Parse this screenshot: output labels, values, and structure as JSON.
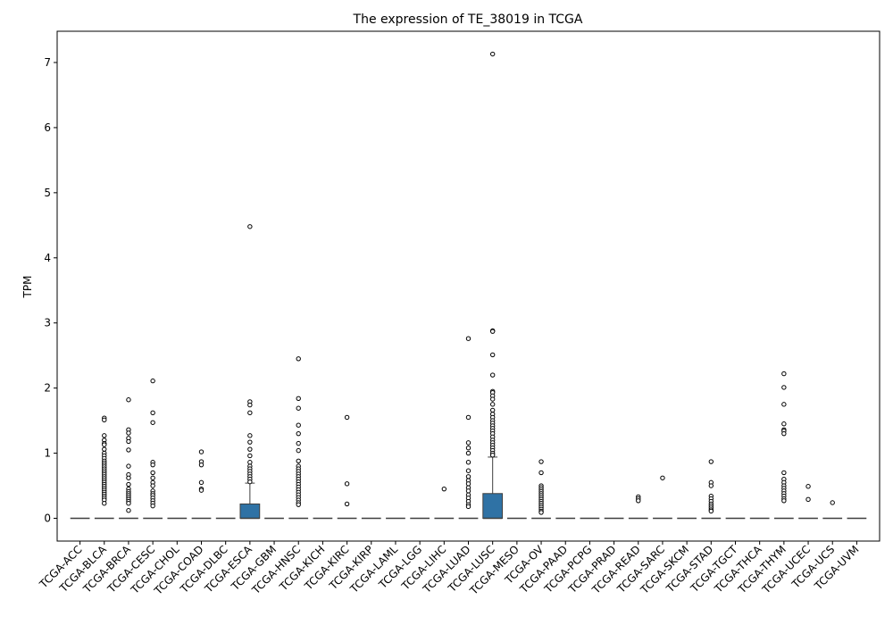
{
  "chart_data": {
    "type": "box",
    "title": "The expression of TE_38019 in TCGA",
    "xlabel": "",
    "ylabel": "TPM",
    "ylim": [
      -0.35,
      7.48
    ],
    "yticks": [
      0,
      1,
      2,
      3,
      4,
      5,
      6,
      7
    ],
    "grid": false,
    "box_color": "#2f72a5",
    "categories": [
      "TCGA-ACC",
      "TCGA-BLCA",
      "TCGA-BRCA",
      "TCGA-CESC",
      "TCGA-CHOL",
      "TCGA-COAD",
      "TCGA-DLBC",
      "TCGA-ESCA",
      "TCGA-GBM",
      "TCGA-HNSC",
      "TCGA-KICH",
      "TCGA-KIRC",
      "TCGA-KIRP",
      "TCGA-LAML",
      "TCGA-LGG",
      "TCGA-LIHC",
      "TCGA-LUAD",
      "TCGA-LUSC",
      "TCGA-MESO",
      "TCGA-OV",
      "TCGA-PAAD",
      "TCGA-PCPG",
      "TCGA-PRAD",
      "TCGA-READ",
      "TCGA-SARC",
      "TCGA-SKCM",
      "TCGA-STAD",
      "TCGA-TGCT",
      "TCGA-THCA",
      "TCGA-THYM",
      "TCGA-UCEC",
      "TCGA-UCS",
      "TCGA-UVM"
    ],
    "boxes": [
      {
        "q1": 0,
        "median": 0,
        "q3": 0,
        "whisker_low": 0,
        "whisker_high": 0,
        "outliers": []
      },
      {
        "q1": 0,
        "median": 0,
        "q3": 0,
        "whisker_low": 0,
        "whisker_high": 0,
        "outliers": [
          1.54,
          1.51,
          1.27,
          1.2,
          1.15,
          1.13,
          1.06,
          1.0,
          0.96,
          0.92,
          0.88,
          0.85,
          0.82,
          0.79,
          0.76,
          0.73,
          0.7,
          0.67,
          0.64,
          0.61,
          0.58,
          0.55,
          0.52,
          0.49,
          0.46,
          0.43,
          0.4,
          0.37,
          0.34,
          0.31,
          0.28,
          0.23
        ]
      },
      {
        "q1": 0,
        "median": 0,
        "q3": 0,
        "whisker_low": 0,
        "whisker_high": 0,
        "outliers": [
          1.82,
          1.36,
          1.31,
          1.23,
          1.18,
          1.05,
          0.8,
          0.67,
          0.62,
          0.52,
          0.45,
          0.41,
          0.38,
          0.35,
          0.32,
          0.29,
          0.26,
          0.23,
          0.12
        ]
      },
      {
        "q1": 0,
        "median": 0,
        "q3": 0,
        "whisker_low": 0,
        "whisker_high": 0,
        "outliers": [
          2.11,
          1.62,
          1.47,
          0.86,
          0.82,
          0.7,
          0.62,
          0.55,
          0.5,
          0.42,
          0.38,
          0.35,
          0.31,
          0.27,
          0.23,
          0.19
        ]
      },
      {
        "q1": 0,
        "median": 0,
        "q3": 0,
        "whisker_low": 0,
        "whisker_high": 0,
        "outliers": []
      },
      {
        "q1": 0,
        "median": 0,
        "q3": 0,
        "whisker_low": 0,
        "whisker_high": 0,
        "outliers": [
          1.02,
          0.87,
          0.82,
          0.55,
          0.45,
          0.43
        ]
      },
      {
        "q1": 0,
        "median": 0,
        "q3": 0,
        "whisker_low": 0,
        "whisker_high": 0,
        "outliers": []
      },
      {
        "q1": 0,
        "median": 0,
        "q3": 0.22,
        "whisker_low": 0,
        "whisker_high": 0.54,
        "outliers": [
          4.48,
          1.79,
          1.74,
          1.62,
          1.27,
          1.17,
          1.06,
          0.96,
          0.86,
          0.8,
          0.76,
          0.72,
          0.68,
          0.64,
          0.6,
          0.56
        ]
      },
      {
        "q1": 0,
        "median": 0,
        "q3": 0,
        "whisker_low": 0,
        "whisker_high": 0,
        "outliers": []
      },
      {
        "q1": 0,
        "median": 0,
        "q3": 0,
        "whisker_low": 0,
        "whisker_high": 0,
        "outliers": [
          2.45,
          1.84,
          1.69,
          1.43,
          1.3,
          1.15,
          1.04,
          0.88,
          0.8,
          0.76,
          0.72,
          0.68,
          0.64,
          0.6,
          0.56,
          0.52,
          0.48,
          0.44,
          0.4,
          0.36,
          0.32,
          0.28,
          0.24,
          0.21
        ]
      },
      {
        "q1": 0,
        "median": 0,
        "q3": 0,
        "whisker_low": 0,
        "whisker_high": 0,
        "outliers": []
      },
      {
        "q1": 0,
        "median": 0,
        "q3": 0,
        "whisker_low": 0,
        "whisker_high": 0,
        "outliers": [
          1.55,
          0.53,
          0.22
        ]
      },
      {
        "q1": 0,
        "median": 0,
        "q3": 0,
        "whisker_low": 0,
        "whisker_high": 0,
        "outliers": []
      },
      {
        "q1": 0,
        "median": 0,
        "q3": 0,
        "whisker_low": 0,
        "whisker_high": 0,
        "outliers": []
      },
      {
        "q1": 0,
        "median": 0,
        "q3": 0,
        "whisker_low": 0,
        "whisker_high": 0,
        "outliers": []
      },
      {
        "q1": 0,
        "median": 0,
        "q3": 0,
        "whisker_low": 0,
        "whisker_high": 0,
        "outliers": [
          0.45
        ]
      },
      {
        "q1": 0,
        "median": 0,
        "q3": 0,
        "whisker_low": 0,
        "whisker_high": 0,
        "outliers": [
          2.76,
          1.55,
          1.16,
          1.08,
          1.0,
          0.86,
          0.73,
          0.64,
          0.58,
          0.53,
          0.47,
          0.42,
          0.36,
          0.31,
          0.26,
          0.21,
          0.18
        ]
      },
      {
        "q1": 0,
        "median": 0,
        "q3": 0.38,
        "whisker_low": 0,
        "whisker_high": 0.94,
        "outliers": [
          7.13,
          2.88,
          2.87,
          2.51,
          2.2,
          1.95,
          1.93,
          1.88,
          1.83,
          1.75,
          1.66,
          1.6,
          1.55,
          1.5,
          1.46,
          1.42,
          1.38,
          1.34,
          1.3,
          1.25,
          1.2,
          1.16,
          1.12,
          1.08,
          1.04,
          1.0,
          0.97
        ]
      },
      {
        "q1": 0,
        "median": 0,
        "q3": 0,
        "whisker_low": 0,
        "whisker_high": 0,
        "outliers": []
      },
      {
        "q1": 0,
        "median": 0,
        "q3": 0,
        "whisker_low": 0,
        "whisker_high": 0,
        "outliers": [
          0.87,
          0.7,
          0.5,
          0.47,
          0.44,
          0.41,
          0.38,
          0.35,
          0.32,
          0.29,
          0.26,
          0.23,
          0.2,
          0.17,
          0.14,
          0.11,
          0.09
        ]
      },
      {
        "q1": 0,
        "median": 0,
        "q3": 0,
        "whisker_low": 0,
        "whisker_high": 0,
        "outliers": []
      },
      {
        "q1": 0,
        "median": 0,
        "q3": 0,
        "whisker_low": 0,
        "whisker_high": 0,
        "outliers": []
      },
      {
        "q1": 0,
        "median": 0,
        "q3": 0,
        "whisker_low": 0,
        "whisker_high": 0,
        "outliers": []
      },
      {
        "q1": 0,
        "median": 0,
        "q3": 0,
        "whisker_low": 0,
        "whisker_high": 0,
        "outliers": [
          0.33,
          0.3,
          0.27
        ]
      },
      {
        "q1": 0,
        "median": 0,
        "q3": 0,
        "whisker_low": 0,
        "whisker_high": 0,
        "outliers": [
          0.62
        ]
      },
      {
        "q1": 0,
        "median": 0,
        "q3": 0,
        "whisker_low": 0,
        "whisker_high": 0,
        "outliers": []
      },
      {
        "q1": 0,
        "median": 0,
        "q3": 0,
        "whisker_low": 0,
        "whisker_high": 0,
        "outliers": [
          0.87,
          0.55,
          0.5,
          0.34,
          0.3,
          0.26,
          0.22,
          0.19,
          0.16,
          0.13,
          0.11
        ]
      },
      {
        "q1": 0,
        "median": 0,
        "q3": 0,
        "whisker_low": 0,
        "whisker_high": 0,
        "outliers": []
      },
      {
        "q1": 0,
        "median": 0,
        "q3": 0,
        "whisker_low": 0,
        "whisker_high": 0,
        "outliers": []
      },
      {
        "q1": 0,
        "median": 0,
        "q3": 0,
        "whisker_low": 0,
        "whisker_high": 0,
        "outliers": [
          2.22,
          2.01,
          1.75,
          1.45,
          1.36,
          1.34,
          1.3,
          0.7,
          0.6,
          0.55,
          0.5,
          0.46,
          0.42,
          0.38,
          0.34,
          0.3,
          0.27
        ]
      },
      {
        "q1": 0,
        "median": 0,
        "q3": 0,
        "whisker_low": 0,
        "whisker_high": 0,
        "outliers": [
          0.49,
          0.29
        ]
      },
      {
        "q1": 0,
        "median": 0,
        "q3": 0,
        "whisker_low": 0,
        "whisker_high": 0,
        "outliers": [
          0.24
        ]
      },
      {
        "q1": 0,
        "median": 0,
        "q3": 0,
        "whisker_low": 0,
        "whisker_high": 0,
        "outliers": []
      }
    ]
  }
}
